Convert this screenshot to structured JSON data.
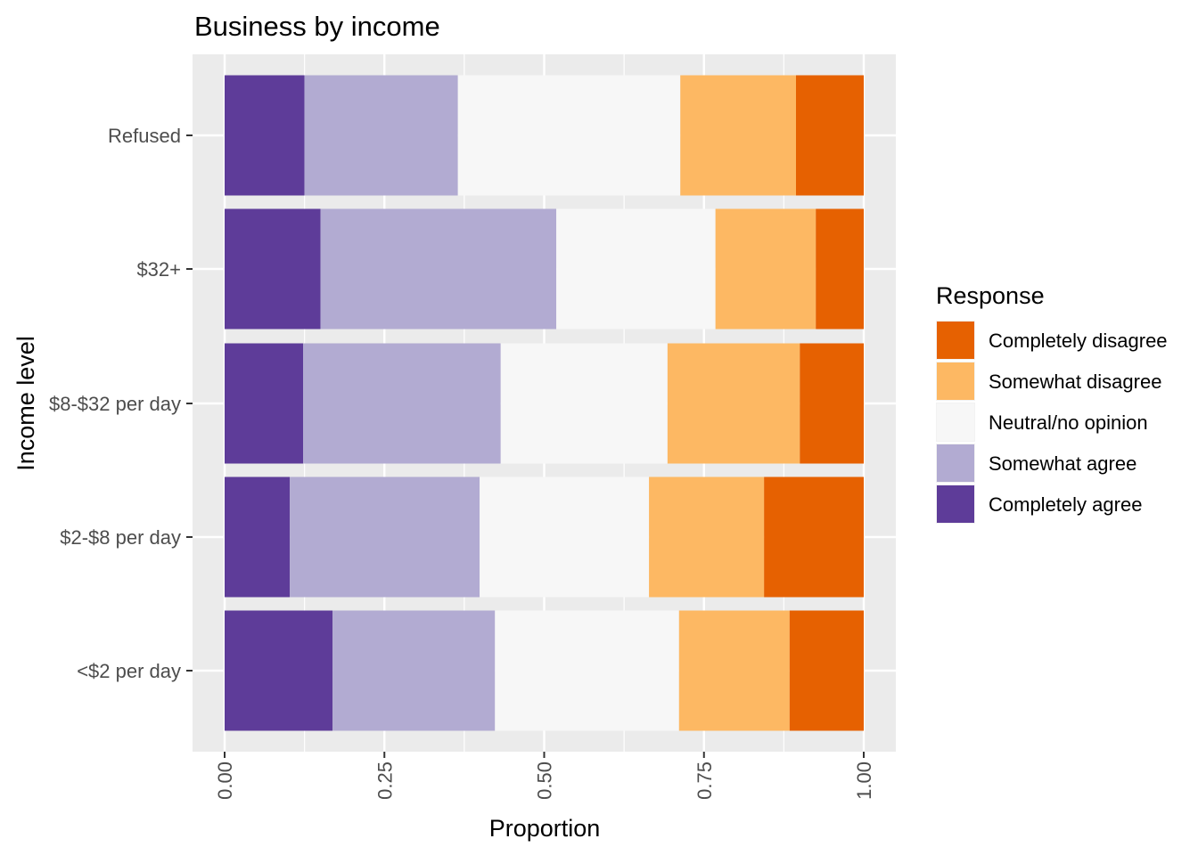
{
  "chart_data": {
    "type": "bar",
    "orientation": "horizontal",
    "stacked": true,
    "title": "Business by income",
    "xlabel": "Proportion",
    "ylabel": "Income level",
    "xlim": [
      0,
      1
    ],
    "x_ticks": [
      "0.00",
      "0.25",
      "0.50",
      "0.75",
      "1.00"
    ],
    "x_tick_values": [
      0,
      0.25,
      0.5,
      0.75,
      1
    ],
    "categories": [
      "Refused",
      "$32+",
      "$8-$32 per day",
      "$2-$8 per day",
      "<$2 per day"
    ],
    "series": [
      {
        "name": "Completely agree",
        "color": "#5E3C99",
        "values": [
          0.125,
          0.15,
          0.123,
          0.102,
          0.169
        ]
      },
      {
        "name": "Somewhat agree",
        "color": "#B2ABD2",
        "values": [
          0.24,
          0.369,
          0.309,
          0.297,
          0.254
        ]
      },
      {
        "name": "Neutral/no opinion",
        "color": "#F7F7F7",
        "values": [
          0.348,
          0.249,
          0.261,
          0.265,
          0.288
        ]
      },
      {
        "name": "Somewhat disagree",
        "color": "#FDB863",
        "values": [
          0.181,
          0.157,
          0.207,
          0.18,
          0.173
        ]
      },
      {
        "name": "Completely disagree",
        "color": "#E66101",
        "values": [
          0.106,
          0.075,
          0.1,
          0.156,
          0.116
        ]
      }
    ],
    "legend": {
      "title": "Response",
      "placement": "right",
      "order": [
        "Completely disagree",
        "Somewhat disagree",
        "Neutral/no opinion",
        "Somewhat agree",
        "Completely agree"
      ]
    },
    "grid": true,
    "panel_background": "#EBEBEB",
    "gridline_color": "#FFFFFF"
  }
}
